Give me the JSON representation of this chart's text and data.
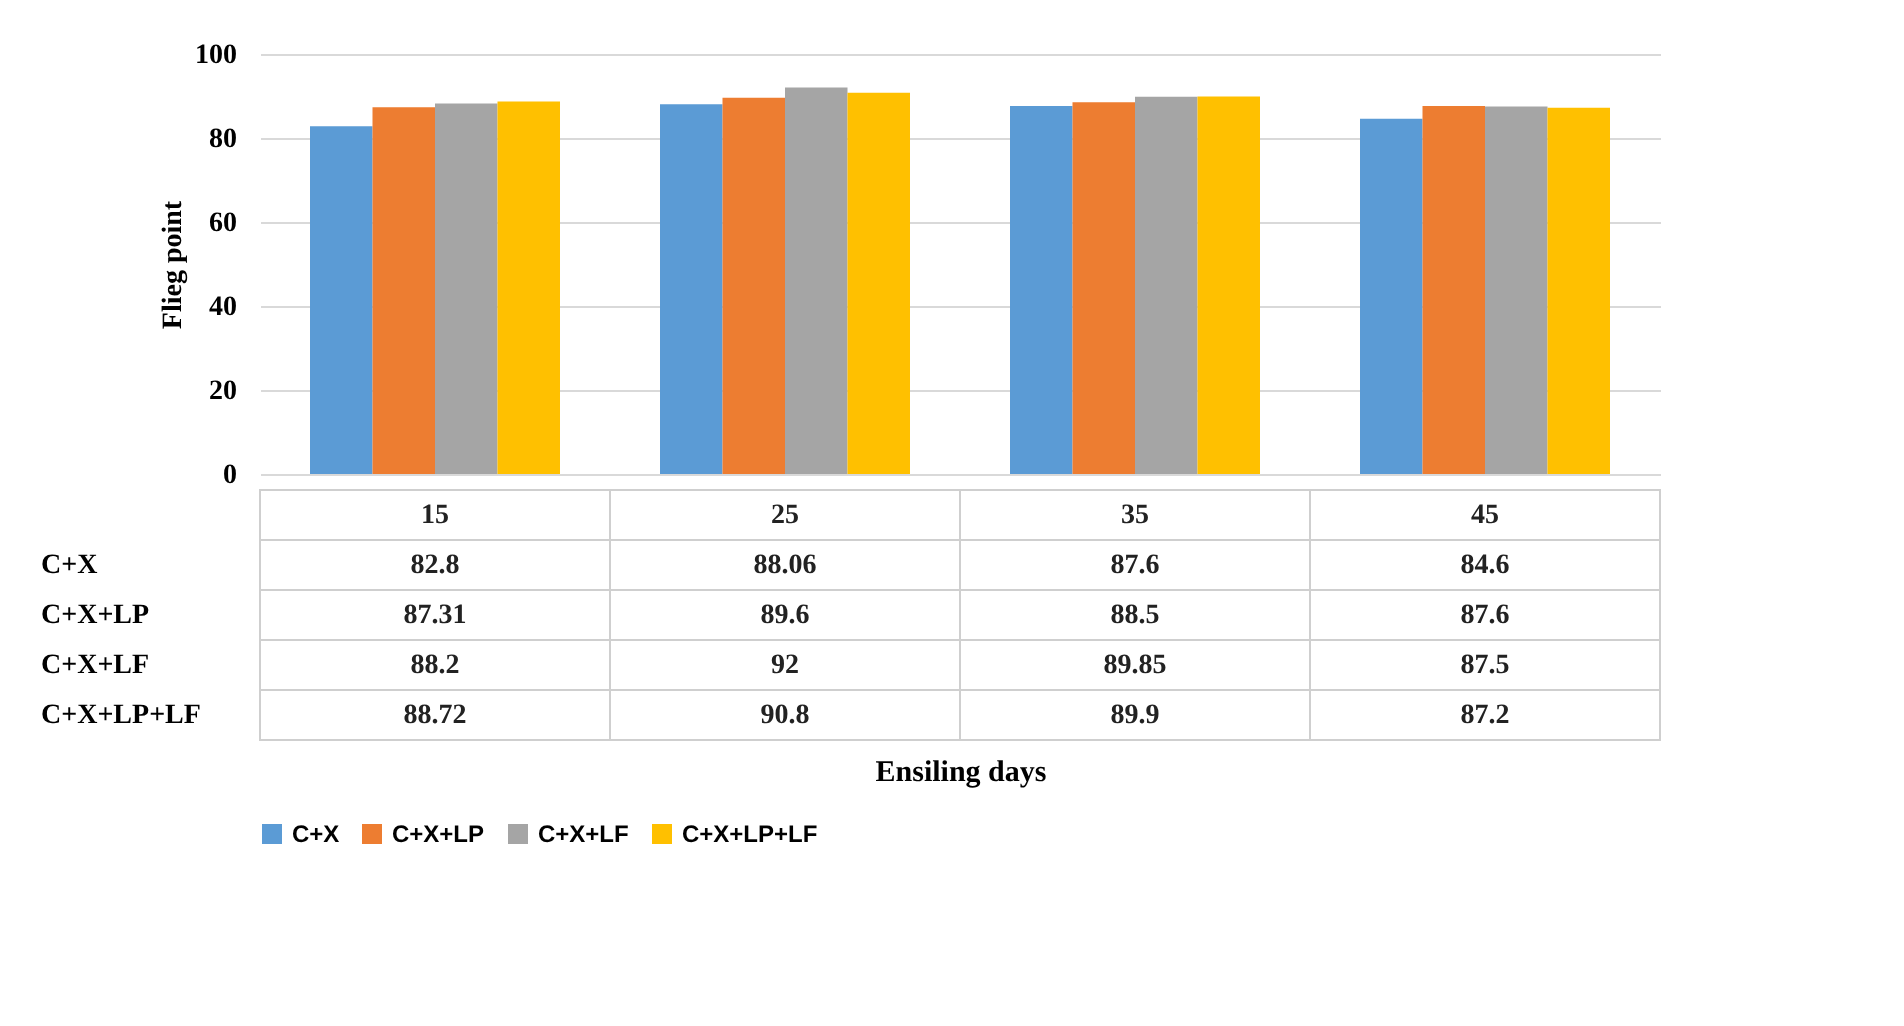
{
  "chart_data": {
    "type": "bar",
    "annotations": [
      "Ensiling days"
    ],
    "ylabel": "Flieg point",
    "categories": [
      "15",
      "25",
      "35",
      "45"
    ],
    "series": [
      {
        "name": "C+X",
        "color": "#5b9bd5",
        "values": [
          82.8,
          88.06,
          87.6,
          84.6
        ]
      },
      {
        "name": "C+X+LP",
        "color": "#ed7d31",
        "values": [
          87.31,
          89.6,
          88.5,
          87.6
        ]
      },
      {
        "name": "C+X+LF",
        "color": "#a5a5a5",
        "values": [
          88.2,
          92,
          89.85,
          87.5
        ]
      },
      {
        "name": "C+X+LP+LF",
        "color": "#ffc000",
        "values": [
          88.72,
          90.8,
          89.9,
          87.2
        ]
      }
    ],
    "ylim": [
      0,
      100
    ],
    "yticks": [
      0,
      20,
      40,
      60,
      80,
      100
    ],
    "grid": "y",
    "legend": "bottom",
    "data_labels": true
  }
}
